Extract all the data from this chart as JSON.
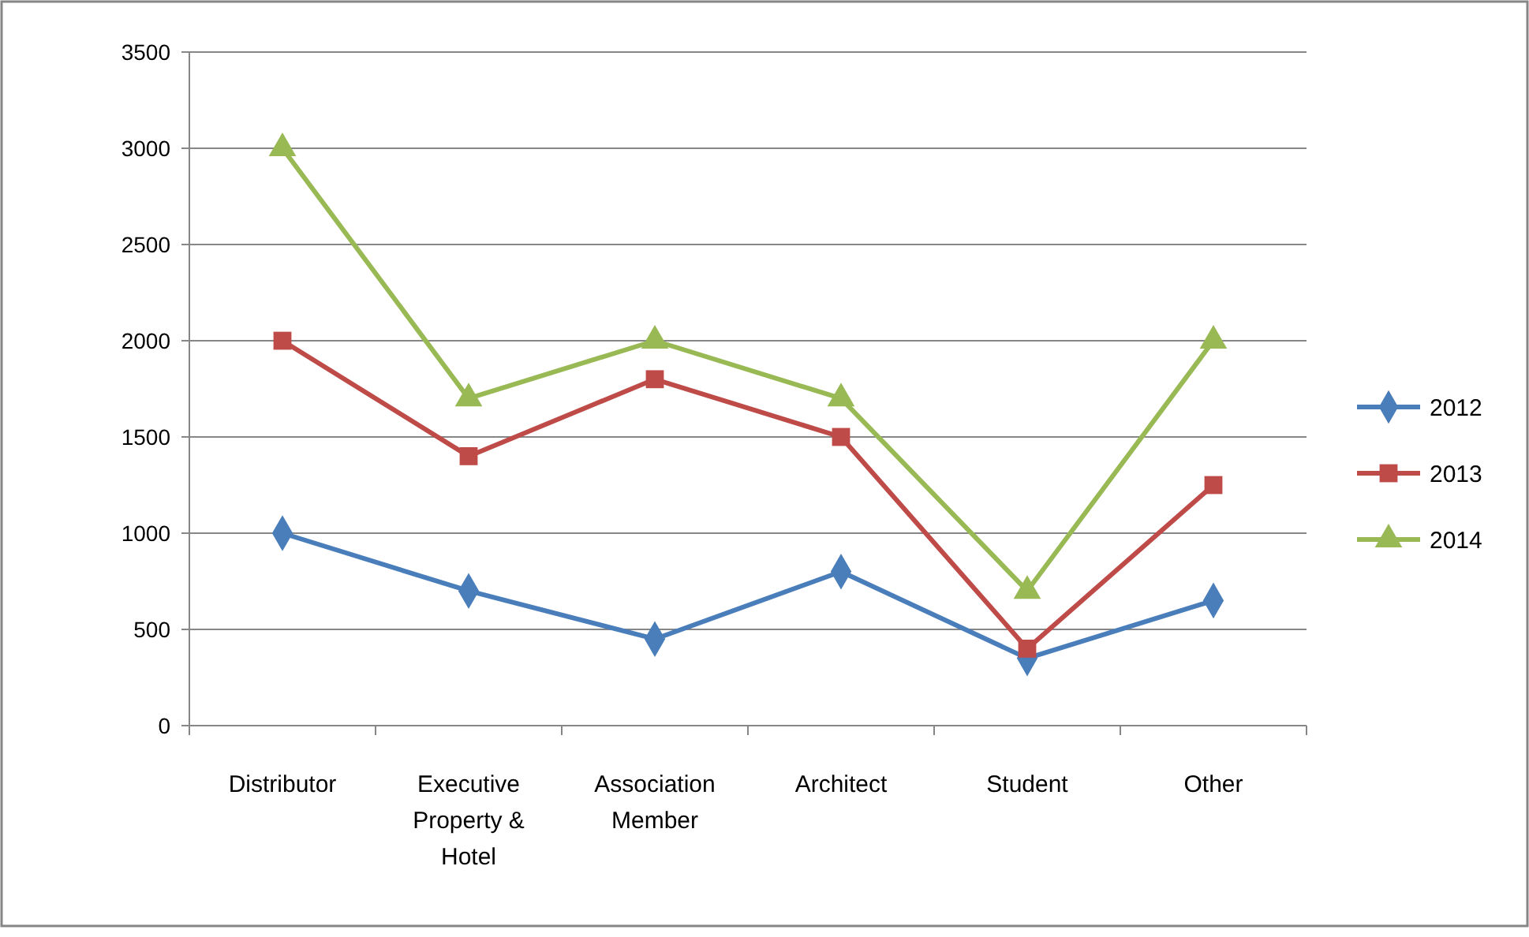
{
  "chart_data": {
    "type": "line",
    "categories": [
      "Distributor",
      "Executive Property & Hotel",
      "Association Member",
      "Architect",
      "Student",
      "Other"
    ],
    "series": [
      {
        "name": "2012",
        "color": "#4a7ebb",
        "marker": "diamond",
        "values": [
          1000,
          700,
          450,
          800,
          350,
          650
        ]
      },
      {
        "name": "2013",
        "color": "#be4b48",
        "marker": "square",
        "values": [
          2000,
          1400,
          1800,
          1500,
          400,
          1250
        ]
      },
      {
        "name": "2014",
        "color": "#98b954",
        "marker": "triangle",
        "values": [
          3000,
          1700,
          2000,
          1700,
          700,
          2000
        ]
      }
    ],
    "ylim": [
      0,
      3500
    ],
    "yticks": [
      0,
      500,
      1000,
      1500,
      2000,
      2500,
      3000,
      3500
    ],
    "grid": "y",
    "legend": "right"
  }
}
